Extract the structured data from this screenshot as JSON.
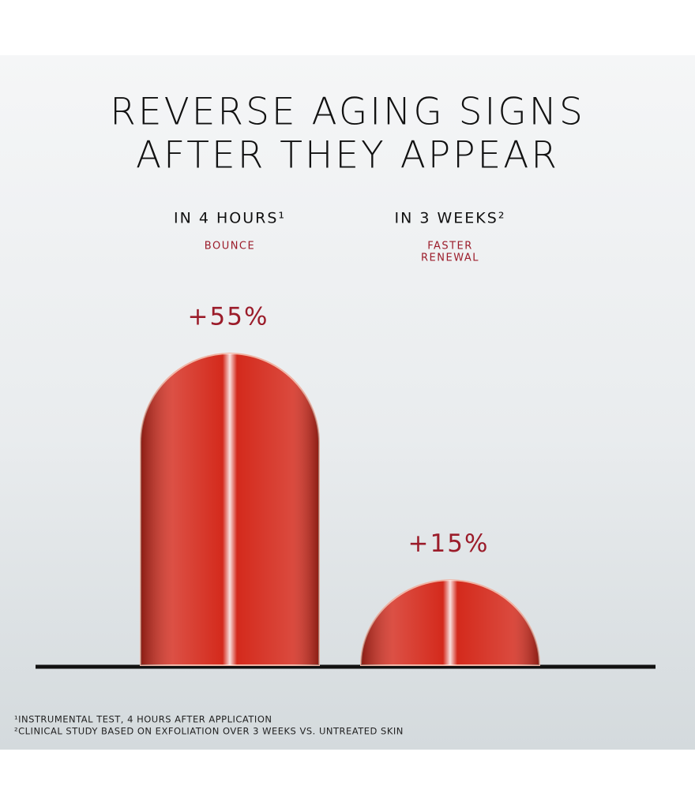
{
  "chart_data": {
    "type": "bar",
    "title": [
      "REVERSE AGING SIGNS",
      "AFTER THEY APPEAR"
    ],
    "categories": [
      "IN 4 HOURS¹",
      "IN 3 WEEKS²"
    ],
    "category_subtitles": [
      [
        "BOUNCE"
      ],
      [
        "FASTER",
        "RENEWAL"
      ]
    ],
    "values": [
      55,
      15
    ],
    "value_labels": [
      "+55%",
      "+15%"
    ],
    "color": "#d42a1c",
    "label_color": "#9b1c2a",
    "footnotes": [
      "¹INSTRUMENTAL TEST, 4 HOURS AFTER APPLICATION",
      "²CLINICAL STUDY BASED ON EXFOLIATION OVER 3 WEEKS VS. UNTREATED SKIN"
    ]
  }
}
